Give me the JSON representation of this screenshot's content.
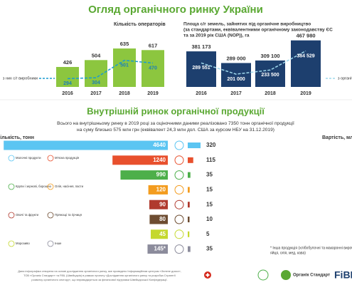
{
  "title": "Огляд органічного ринку України",
  "chart_data": [
    {
      "type": "bar",
      "title": "Кількість операторів",
      "categories": [
        "2016",
        "2017",
        "2018",
        "2019"
      ],
      "ylim": [
        200,
        700
      ],
      "series": [
        {
          "color": "#8cc63f",
          "values": [
            426,
            504,
            635,
            617
          ]
        },
        {
          "name": "з них с/г виробники",
          "kind": "line",
          "color": "#1b9bd1",
          "values": [
            294,
            304,
            501,
            470
          ]
        }
      ]
    },
    {
      "type": "bar",
      "title": [
        "Площа с/г земель, зайнятих під органічне виробництво",
        "(за стандартами, еквівалентними органічному законодавству ЄС",
        "та за 2019 рік США (NOP)), га"
      ],
      "categories": [
        "2016",
        "2017",
        "2018",
        "2019"
      ],
      "ylim": [
        100000,
        500000
      ],
      "series": [
        {
          "color": "#1d3f6e",
          "values": [
            381173,
            289000,
            309100,
            467980
          ],
          "value_labels": [
            "381 173",
            "289 000",
            "309 100",
            "467 980"
          ]
        },
        {
          "name": "з органічним статусом",
          "kind": "line",
          "color": "#9fd8ec",
          "values": [
            289551,
            201000,
            233500,
            384529
          ],
          "value_labels": [
            "289 551",
            "201 000",
            "233 500",
            "384 529"
          ]
        }
      ]
    },
    {
      "type": "hbar",
      "title": "Внутрішній ринок органічної продукції",
      "text": [
        "Всього на внутрішньому ринку в 2019 році за оціночними даними реалізовано 7350 тонн органічної продукції",
        "на суму близько 575 млн грн (еквівалент 24,3 млн дол. США за курсом НБУ на 31.12.2019)"
      ],
      "categories": [
        "Молочні продукти",
        "М'ясна продукція",
        "Крупи і зернові, борошно",
        "Олія, насіння, пасти",
        "Овочі та фрукти",
        "Прянощі та гірчиця",
        "Морозиво",
        "Інше"
      ],
      "colors": [
        "#5bc5f2",
        "#e8502d",
        "#4daf4a",
        "#f39c1f",
        "#b03a2e",
        "#6d4c31",
        "#c5d82e",
        "#8c8c9c"
      ],
      "series": [
        {
          "name": "Кількість, тонн",
          "values": [
            4640,
            1240,
            990,
            120,
            90,
            80,
            45,
            145
          ],
          "value_labels": [
            "4640",
            "1240",
            "990",
            "120",
            "90",
            "80",
            "45",
            "145*"
          ]
        },
        {
          "name": "Вартість, млн грн",
          "values": [
            320,
            115,
            35,
            15,
            15,
            10,
            5,
            35
          ]
        }
      ],
      "footnote": [
        "* Інша продукція (хлібобулочні та макаронні вироби,",
        "яйця, олія, мед, кава)"
      ]
    }
  ],
  "footer": [
    "Дана інфографіка створена на основі дослідження органічного ринку, яке проведено Інформаційним центром «Зелене досьє»,",
    "ТОВ «Органік Стандарт» та FiBL (Швейцарія) в рамках проекту «Дослідження органічного ринку та розробка Стратегії",
    "розвитку органічного сектору», що впроваджується за фінансової підтримки Швейцарської Конфедерації."
  ],
  "logos": [
    "Органік Стандарт",
    "FiBL"
  ]
}
